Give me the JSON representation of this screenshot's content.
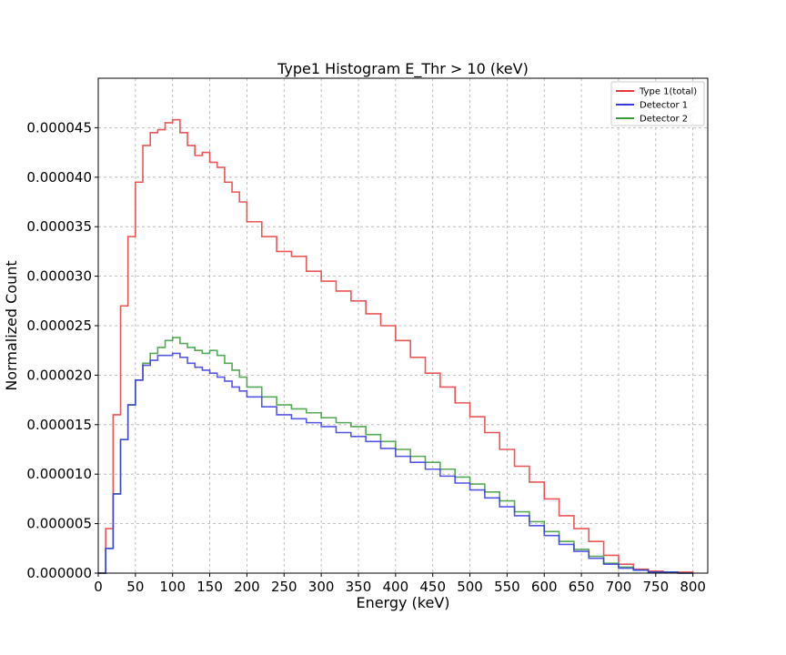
{
  "chart_data": {
    "type": "histogram",
    "title": "Type1 Histogram E_Thr > 10 (keV)",
    "xlabel": "Energy (keV)",
    "ylabel": "Normalized Count",
    "xlim": [
      0,
      820
    ],
    "ylim": [
      0,
      5e-05
    ],
    "xticks": [
      0,
      50,
      100,
      150,
      200,
      250,
      300,
      350,
      400,
      450,
      500,
      550,
      600,
      650,
      700,
      750,
      800
    ],
    "xtick_labels": [
      "0",
      "50",
      "100",
      "150",
      "200",
      "250",
      "300",
      "350",
      "400",
      "450",
      "500",
      "550",
      "600",
      "650",
      "700",
      "750",
      "800"
    ],
    "yticks": [
      0,
      5e-06,
      1e-05,
      1.5e-05,
      2e-05,
      2.5e-05,
      3e-05,
      3.5e-05,
      4e-05,
      4.5e-05
    ],
    "ytick_labels": [
      "0.000000",
      "0.000005",
      "0.000010",
      "0.000015",
      "0.000020",
      "0.000025",
      "0.000030",
      "0.000035",
      "0.000040",
      "0.000045"
    ],
    "grid": true,
    "legend_position": "top-right",
    "series": [
      {
        "name": "Type 1(total)",
        "color": "#e8383b",
        "x": [
          0,
          10,
          20,
          30,
          40,
          50,
          60,
          70,
          80,
          90,
          100,
          110,
          120,
          130,
          140,
          150,
          160,
          170,
          180,
          190,
          200,
          220,
          240,
          260,
          280,
          300,
          320,
          340,
          360,
          380,
          400,
          420,
          440,
          460,
          480,
          500,
          520,
          540,
          560,
          580,
          600,
          620,
          640,
          660,
          680,
          700,
          720,
          740,
          760,
          780,
          800
        ],
        "y": [
          0,
          4.5e-06,
          1.6e-05,
          2.7e-05,
          3.4e-05,
          3.95e-05,
          4.32e-05,
          4.45e-05,
          4.48e-05,
          4.55e-05,
          4.58e-05,
          4.45e-05,
          4.32e-05,
          4.22e-05,
          4.25e-05,
          4.15e-05,
          4.1e-05,
          3.95e-05,
          3.85e-05,
          3.75e-05,
          3.55e-05,
          3.4e-05,
          3.25e-05,
          3.2e-05,
          3.05e-05,
          2.95e-05,
          2.85e-05,
          2.75e-05,
          2.62e-05,
          2.5e-05,
          2.35e-05,
          2.18e-05,
          2.02e-05,
          1.88e-05,
          1.72e-05,
          1.58e-05,
          1.42e-05,
          1.25e-05,
          1.08e-05,
          9.2e-06,
          7.5e-06,
          5.8e-06,
          4.5e-06,
          3.2e-06,
          1.8e-06,
          9e-07,
          4e-07,
          2e-07,
          1e-07,
          1e-07,
          0
        ]
      },
      {
        "name": "Detector 1",
        "color": "#3a3ae0",
        "x": [
          0,
          10,
          20,
          30,
          40,
          50,
          60,
          70,
          80,
          90,
          100,
          110,
          120,
          130,
          140,
          150,
          160,
          170,
          180,
          190,
          200,
          220,
          240,
          260,
          280,
          300,
          320,
          340,
          360,
          380,
          400,
          420,
          440,
          460,
          480,
          500,
          520,
          540,
          560,
          580,
          600,
          620,
          640,
          660,
          680,
          700,
          720,
          740,
          760,
          780,
          800
        ],
        "y": [
          0,
          2.5e-06,
          8e-06,
          1.35e-05,
          1.7e-05,
          1.95e-05,
          2.1e-05,
          2.15e-05,
          2.2e-05,
          2.2e-05,
          2.22e-05,
          2.18e-05,
          2.12e-05,
          2.08e-05,
          2.05e-05,
          2.02e-05,
          1.98e-05,
          1.94e-05,
          1.88e-05,
          1.84e-05,
          1.78e-05,
          1.68e-05,
          1.6e-05,
          1.56e-05,
          1.52e-05,
          1.48e-05,
          1.42e-05,
          1.38e-05,
          1.33e-05,
          1.26e-05,
          1.18e-05,
          1.12e-05,
          1.05e-05,
          9.8e-06,
          9.1e-06,
          8.4e-06,
          7.6e-06,
          6.7e-06,
          5.8e-06,
          4.8e-06,
          3.8e-06,
          2.9e-06,
          2.2e-06,
          1.5e-06,
          9e-07,
          5e-07,
          3e-07,
          1e-07,
          1e-07,
          0,
          0
        ]
      },
      {
        "name": "Detector 2",
        "color": "#3a9a3a",
        "x": [
          0,
          10,
          20,
          30,
          40,
          50,
          60,
          70,
          80,
          90,
          100,
          110,
          120,
          130,
          140,
          150,
          160,
          170,
          180,
          190,
          200,
          220,
          240,
          260,
          280,
          300,
          320,
          340,
          360,
          380,
          400,
          420,
          440,
          460,
          480,
          500,
          520,
          540,
          560,
          580,
          600,
          620,
          640,
          660,
          680,
          700,
          720,
          740,
          760,
          780,
          800
        ],
        "y": [
          0,
          2.5e-06,
          8e-06,
          1.35e-05,
          1.7e-05,
          1.95e-05,
          2.12e-05,
          2.22e-05,
          2.28e-05,
          2.35e-05,
          2.38e-05,
          2.32e-05,
          2.28e-05,
          2.25e-05,
          2.22e-05,
          2.25e-05,
          2.2e-05,
          2.12e-05,
          2.05e-05,
          1.98e-05,
          1.88e-05,
          1.78e-05,
          1.7e-05,
          1.66e-05,
          1.62e-05,
          1.57e-05,
          1.52e-05,
          1.48e-05,
          1.4e-05,
          1.33e-05,
          1.25e-05,
          1.18e-05,
          1.12e-05,
          1.05e-05,
          9.7e-06,
          9e-06,
          8.2e-06,
          7.3e-06,
          6.2e-06,
          5.2e-06,
          4.2e-06,
          3.2e-06,
          2.4e-06,
          1.7e-06,
          1e-06,
          6e-07,
          3e-07,
          1e-07,
          1e-07,
          0,
          0
        ]
      }
    ]
  }
}
